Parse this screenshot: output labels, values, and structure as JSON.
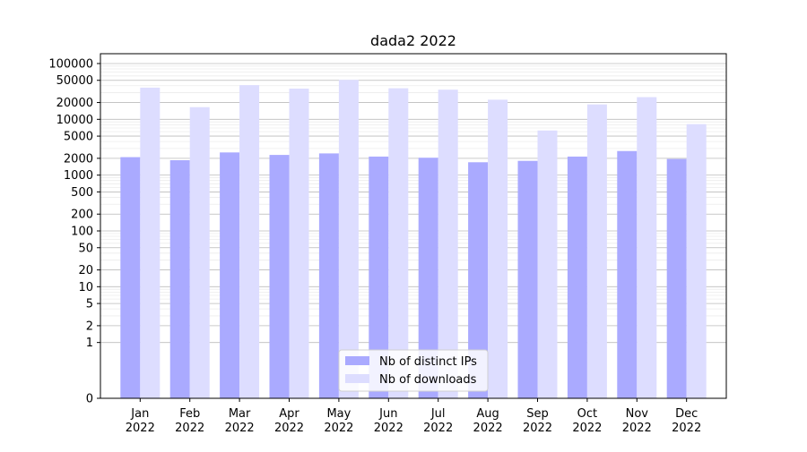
{
  "chart_data": {
    "type": "bar",
    "title": "dada2 2022",
    "xlabel": "",
    "ylabel": "",
    "yscale": "symlog",
    "ylim": [
      0,
      150000
    ],
    "grid": "y-major-and-minor",
    "legend_position": "bottom-center",
    "categories": [
      [
        "Jan",
        "2022"
      ],
      [
        "Feb",
        "2022"
      ],
      [
        "Mar",
        "2022"
      ],
      [
        "Apr",
        "2022"
      ],
      [
        "May",
        "2022"
      ],
      [
        "Jun",
        "2022"
      ],
      [
        "Jul",
        "2022"
      ],
      [
        "Aug",
        "2022"
      ],
      [
        "Sep",
        "2022"
      ],
      [
        "Oct",
        "2022"
      ],
      [
        "Nov",
        "2022"
      ],
      [
        "Dec",
        "2022"
      ]
    ],
    "y_ticks": [
      0,
      1,
      2,
      5,
      10,
      20,
      50,
      100,
      200,
      500,
      1000,
      2000,
      5000,
      10000,
      20000,
      50000,
      100000
    ],
    "series": [
      {
        "name": "Nb of distinct IPs",
        "color": "#aaaaff",
        "values": [
          2100,
          1850,
          2550,
          2300,
          2450,
          2150,
          2050,
          1700,
          1800,
          2150,
          2700,
          1950
        ]
      },
      {
        "name": "Nb of downloads",
        "color": "#ddddff",
        "values": [
          37000,
          16500,
          41000,
          35500,
          51000,
          36000,
          34000,
          22500,
          6300,
          18500,
          25000,
          8200
        ]
      }
    ]
  }
}
